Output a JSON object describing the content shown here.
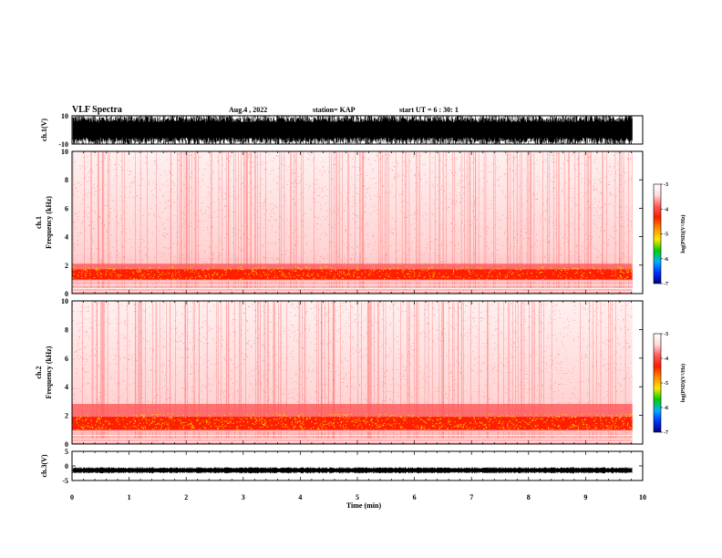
{
  "header": {
    "title": "VLF Spectra",
    "date": "Aug.4 , 2022",
    "station": "station= KAP",
    "start": "start UT = 6 : 30: 1"
  },
  "colorbar": {
    "label": "log(PSD)(V²/Hz)",
    "ticks": [
      "-3",
      "-4",
      "-5",
      "-6",
      "-7"
    ],
    "colors": [
      "#ffffff",
      "#ffd8d8",
      "#ff5a5a",
      "#ff1a00",
      "#ff8c00",
      "#ffe600",
      "#00d000",
      "#00b0ff",
      "#0030ff",
      "#000080"
    ]
  },
  "chart_data": [
    {
      "type": "line",
      "panel": "ch1-waveform",
      "ylabel": "ch.1(V)",
      "ylim": [
        -10,
        10
      ],
      "yticks": [
        "10",
        "-10"
      ],
      "description_values": {
        "min": -10,
        "max": 10
      }
    },
    {
      "type": "heatmap",
      "panel": "ch1-spectrogram",
      "ylabel_line1": "ch.1",
      "ylabel_line2": "Frequency (kHz)",
      "ylim": [
        0,
        10
      ],
      "yticks": [
        "0",
        "2",
        "4",
        "6",
        "8",
        "10"
      ],
      "zlim": [
        -7,
        -3
      ]
    },
    {
      "type": "heatmap",
      "panel": "ch2-spectrogram",
      "ylabel_line1": "ch.2",
      "ylabel_line2": "Frequency (kHz)",
      "ylim": [
        0,
        10
      ],
      "yticks": [
        "0",
        "2",
        "4",
        "6",
        "8",
        "10"
      ],
      "zlim": [
        -7,
        -3
      ]
    },
    {
      "type": "line",
      "panel": "ch3-waveform",
      "ylabel": "ch.3(V)",
      "ylim": [
        -5,
        5
      ],
      "yticks": [
        "5",
        "0",
        "-5"
      ],
      "baseline": -1.5
    }
  ],
  "xaxis": {
    "label": "Time (min)",
    "xlim": [
      0,
      10
    ],
    "ticks": [
      "0",
      "1",
      "2",
      "3",
      "4",
      "5",
      "6",
      "7",
      "8",
      "9",
      "10"
    ],
    "data_end": 9.82
  }
}
